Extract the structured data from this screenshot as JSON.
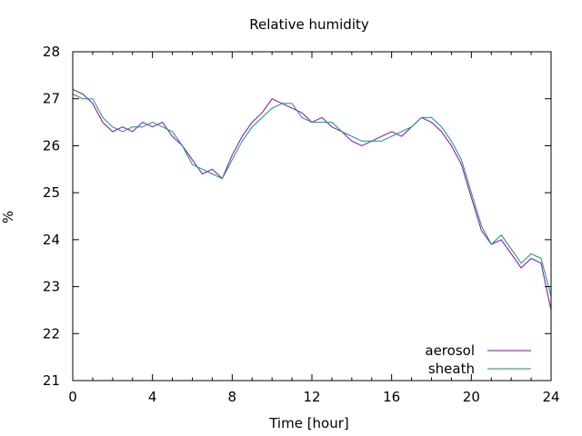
{
  "chart_data": {
    "type": "line",
    "title": "Relative humidity",
    "xlabel": "Time [hour]",
    "ylabel": "%",
    "xlim": [
      0,
      24
    ],
    "ylim": [
      21,
      28
    ],
    "xticks": [
      "0",
      "4",
      "8",
      "12",
      "16",
      "20",
      "24"
    ],
    "yticks": [
      "21",
      "22",
      "23",
      "24",
      "25",
      "26",
      "27",
      "28"
    ],
    "grid": false,
    "legend_position": "bottom-right",
    "series": [
      {
        "name": "aerosol",
        "color": "#9400d3",
        "x": [
          0,
          0.5,
          1,
          1.5,
          2,
          2.5,
          3,
          3.5,
          4,
          4.5,
          5,
          5.5,
          6,
          6.5,
          7,
          7.5,
          8,
          8.5,
          9,
          9.5,
          10,
          10.5,
          11,
          11.5,
          12,
          12.5,
          13,
          13.5,
          14,
          14.5,
          15,
          15.5,
          16,
          16.5,
          17,
          17.5,
          18,
          18.5,
          19,
          19.5,
          20,
          20.5,
          21,
          21.5,
          22,
          22.5,
          23,
          23.5,
          24
        ],
        "y": [
          27.2,
          27.1,
          26.9,
          26.5,
          26.3,
          26.4,
          26.3,
          26.5,
          26.4,
          26.5,
          26.2,
          26.0,
          25.7,
          25.4,
          25.5,
          25.3,
          25.8,
          26.2,
          26.5,
          26.7,
          27.0,
          26.9,
          26.8,
          26.7,
          26.5,
          26.6,
          26.4,
          26.3,
          26.1,
          26.0,
          26.1,
          26.2,
          26.3,
          26.2,
          26.4,
          26.6,
          26.5,
          26.3,
          26.0,
          25.6,
          24.9,
          24.2,
          23.9,
          24.0,
          23.7,
          23.4,
          23.6,
          23.5,
          22.5
        ]
      },
      {
        "name": "sheath",
        "color": "#009e73",
        "x": [
          0,
          0.5,
          1,
          1.5,
          2,
          2.5,
          3,
          3.5,
          4,
          4.5,
          5,
          5.5,
          6,
          6.5,
          7,
          7.5,
          8,
          8.5,
          9,
          9.5,
          10,
          10.5,
          11,
          11.5,
          12,
          12.5,
          13,
          13.5,
          14,
          14.5,
          15,
          15.5,
          16,
          16.5,
          17,
          17.5,
          18,
          18.5,
          19,
          19.5,
          20,
          20.5,
          21,
          21.5,
          22,
          22.5,
          23,
          23.5,
          24
        ],
        "y": [
          27.1,
          27.0,
          27.0,
          26.6,
          26.4,
          26.3,
          26.4,
          26.4,
          26.5,
          26.4,
          26.3,
          26.0,
          25.6,
          25.5,
          25.4,
          25.3,
          25.7,
          26.1,
          26.4,
          26.6,
          26.8,
          26.9,
          26.9,
          26.6,
          26.5,
          26.5,
          26.5,
          26.3,
          26.2,
          26.1,
          26.1,
          26.1,
          26.2,
          26.3,
          26.4,
          26.6,
          26.6,
          26.4,
          26.1,
          25.7,
          25.0,
          24.3,
          23.9,
          24.1,
          23.8,
          23.5,
          23.7,
          23.6,
          22.8
        ]
      }
    ]
  }
}
